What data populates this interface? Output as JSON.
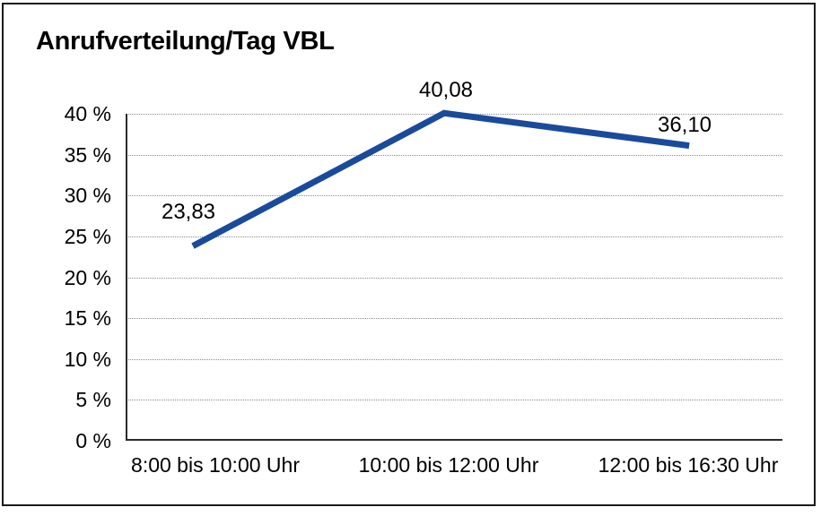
{
  "window": {
    "background": "#ffffff",
    "frame_border_color": "#1a1a1a"
  },
  "chart_data": {
    "type": "line",
    "title": "Anrufverteilung/Tag VBL",
    "categories": [
      "8:00 bis 10:00 Uhr",
      "10:00 bis 12:00 Uhr",
      "12:00 bis 16:30 Uhr"
    ],
    "series": [
      {
        "name": "Anrufverteilung/Tag VBL",
        "values": [
          23.83,
          40.08,
          36.1
        ]
      }
    ],
    "point_labels": [
      "23,83",
      "40,08",
      "36,10"
    ],
    "xlabel": "",
    "ylabel": "",
    "ylim": [
      0,
      40
    ],
    "ytick_step": 5,
    "ytick_labels": [
      "0 %",
      "5 %",
      "10 %",
      "15 %",
      "20 %",
      "25 %",
      "30 %",
      "35 %",
      "40 %"
    ],
    "grid": {
      "horizontal": true,
      "style": "dotted",
      "color": "#8a8a8a"
    },
    "legend": "none",
    "line_color": "#1a4b9b",
    "axis_color": "#2b2b2b",
    "text_color": "#000000"
  }
}
